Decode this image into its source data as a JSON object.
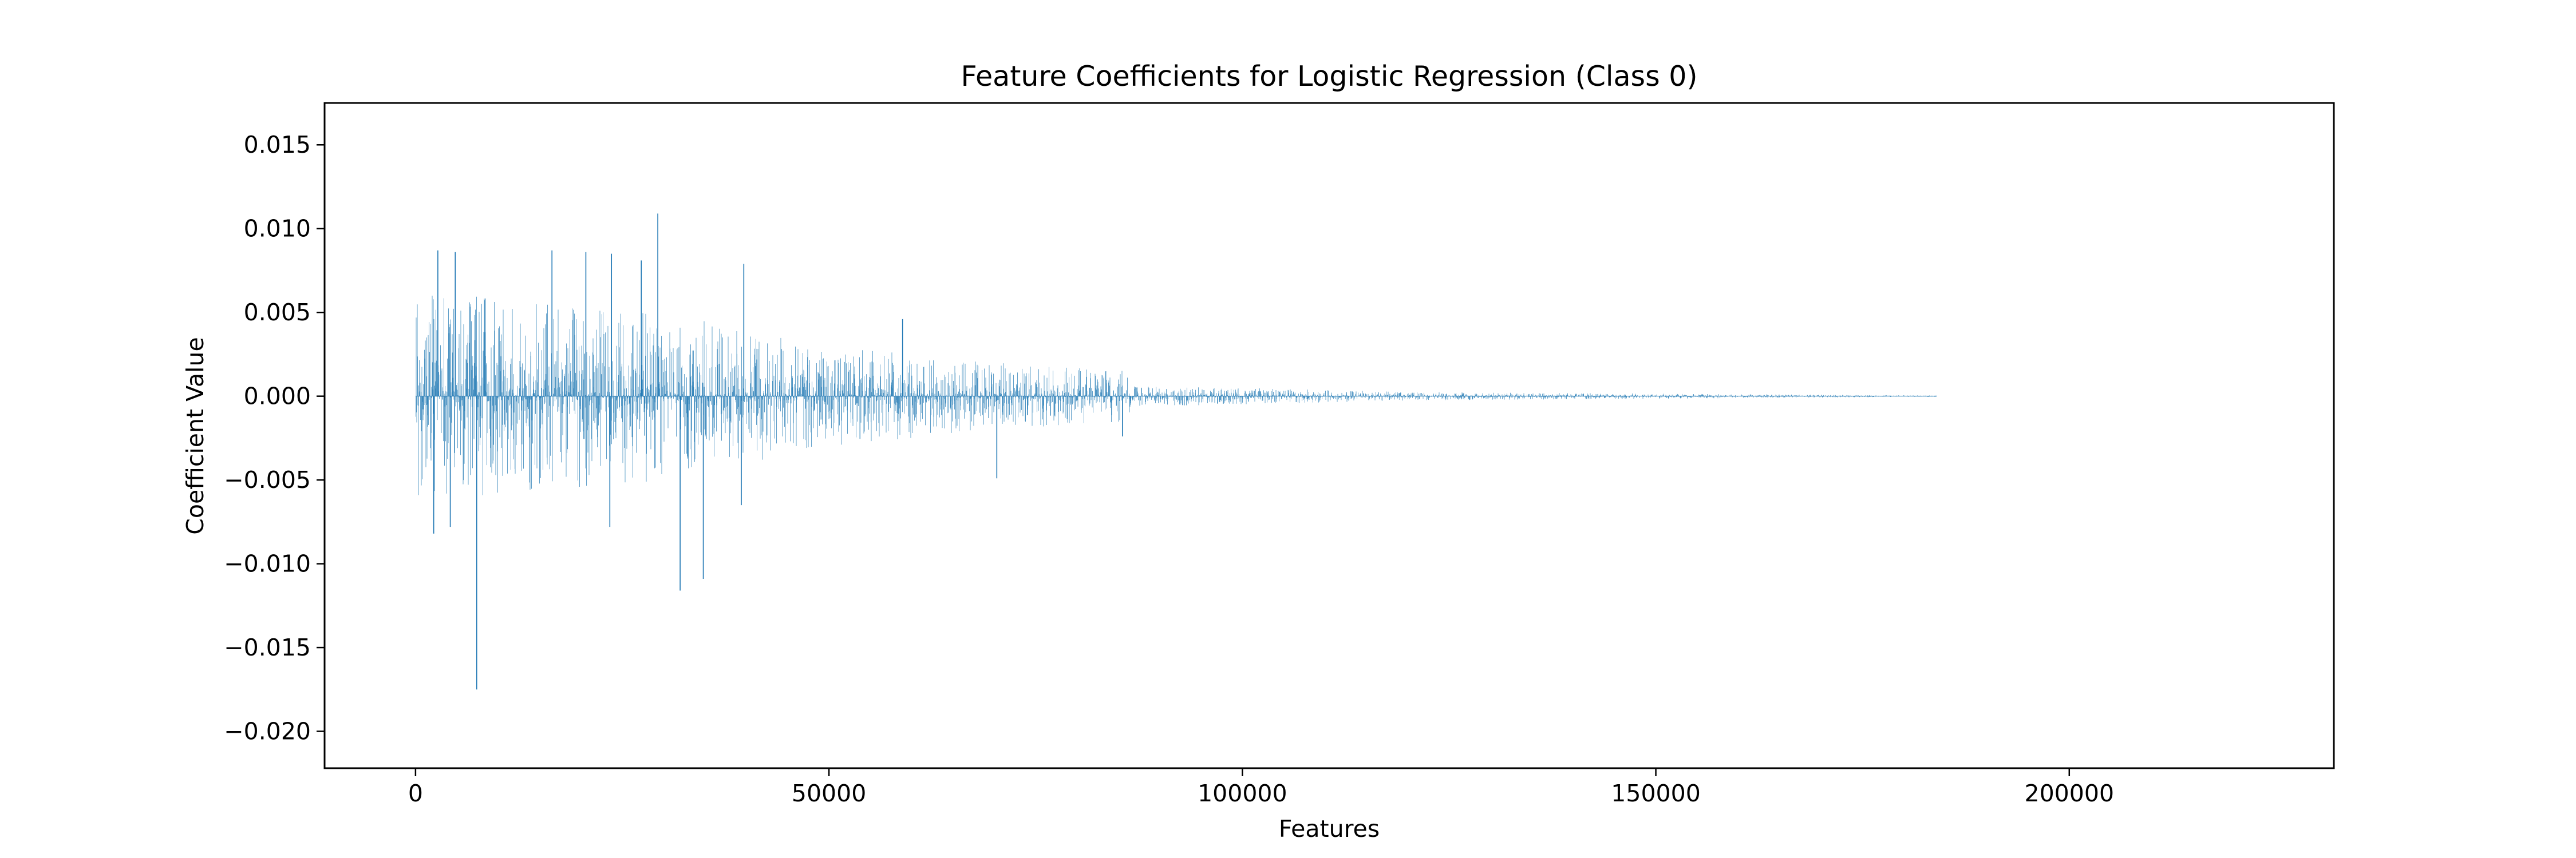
{
  "chart_data": {
    "type": "bar",
    "title": "Feature Coefficients for Logistic Regression (Class 0)",
    "xlabel": "Features",
    "ylabel": "Coefficient Value",
    "xlim": [
      -11000,
      232000
    ],
    "ylim": [
      -0.0222,
      0.0175
    ],
    "x_ticks": [
      0,
      50000,
      100000,
      150000,
      200000
    ],
    "x_tick_labels": [
      "0",
      "50000",
      "100000",
      "150000",
      "200000"
    ],
    "y_ticks": [
      -0.02,
      -0.015,
      -0.01,
      -0.005,
      0.0,
      0.005,
      0.01,
      0.015
    ],
    "y_tick_labels": [
      "−0.020",
      "−0.015",
      "−0.010",
      "−0.005",
      "0.000",
      "0.005",
      "0.010",
      "0.015"
    ],
    "grid": false,
    "legend": "none",
    "bar_color": "#1f77b4",
    "n_features": 184000,
    "notable_bars": [
      {
        "x": 29300,
        "value": 0.0109
      },
      {
        "x": 7400,
        "value": -0.0175
      },
      {
        "x": 32000,
        "value": -0.0116
      },
      {
        "x": 34800,
        "value": -0.0109
      },
      {
        "x": 2700,
        "value": 0.0087
      },
      {
        "x": 4800,
        "value": 0.0086
      },
      {
        "x": 16500,
        "value": 0.0087
      },
      {
        "x": 20600,
        "value": 0.0086
      },
      {
        "x": 23700,
        "value": 0.0085
      },
      {
        "x": 27300,
        "value": 0.0081
      },
      {
        "x": 39700,
        "value": 0.0079
      },
      {
        "x": 58900,
        "value": 0.0046
      },
      {
        "x": 2200,
        "value": -0.0082
      },
      {
        "x": 4200,
        "value": -0.0078
      },
      {
        "x": 23500,
        "value": -0.0078
      },
      {
        "x": 39400,
        "value": -0.0065
      },
      {
        "x": 70300,
        "value": -0.0049
      },
      {
        "x": 85500,
        "value": -0.0024
      }
    ],
    "envelope": [
      {
        "x": 0,
        "pos": 0.006,
        "neg": -0.006
      },
      {
        "x": 10000,
        "pos": 0.006,
        "neg": -0.006
      },
      {
        "x": 30000,
        "pos": 0.005,
        "neg": -0.005
      },
      {
        "x": 50000,
        "pos": 0.003,
        "neg": -0.003
      },
      {
        "x": 70000,
        "pos": 0.002,
        "neg": -0.002
      },
      {
        "x": 86000,
        "pos": 0.0015,
        "neg": -0.0015
      },
      {
        "x": 87000,
        "pos": 0.0006,
        "neg": -0.0006
      },
      {
        "x": 100000,
        "pos": 0.0005,
        "neg": -0.0005
      },
      {
        "x": 120000,
        "pos": 0.00025,
        "neg": -0.00025
      },
      {
        "x": 150000,
        "pos": 0.00015,
        "neg": -0.00015
      },
      {
        "x": 184000,
        "pos": 4e-05,
        "neg": -4e-05
      }
    ]
  }
}
